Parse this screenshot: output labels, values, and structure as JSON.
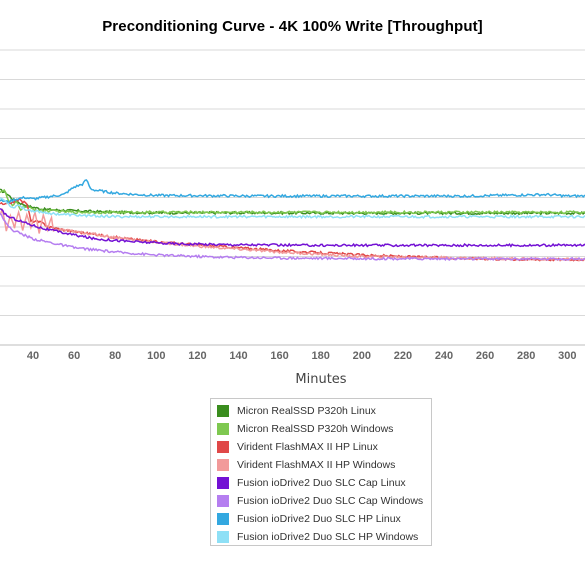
{
  "chart_data": {
    "type": "line",
    "title": "Preconditioning Curve - 4K 100% Write [Throughput]",
    "xlabel": "Minutes",
    "ylabel": "",
    "xlim": [
      24,
      309
    ],
    "ylim": [
      0,
      10
    ],
    "x_ticks": [
      "40",
      "60",
      "80",
      "100",
      "120",
      "140",
      "160",
      "180",
      "200",
      "220",
      "240",
      "260",
      "280",
      "300"
    ],
    "grid": true,
    "legend_position": "bottom-center",
    "series": [
      {
        "name": "Micron RealSSD P320h Linux",
        "color": "#3a8d1e",
        "x": [
          24,
          27,
          30,
          34,
          38,
          45,
          60,
          80,
          100,
          150,
          200,
          250,
          309
        ],
        "y": [
          5.25,
          5.15,
          4.95,
          4.8,
          4.7,
          4.6,
          4.55,
          4.5,
          4.48,
          4.48,
          4.47,
          4.47,
          4.47
        ]
      },
      {
        "name": "Micron RealSSD P320h Windows",
        "color": "#7ec850",
        "x": [
          24,
          26,
          28,
          30,
          32,
          34,
          36,
          40,
          45,
          50,
          60,
          80,
          100,
          150,
          200,
          250,
          309
        ],
        "y": [
          5.2,
          5.25,
          4.9,
          4.7,
          4.85,
          4.6,
          4.7,
          4.6,
          4.55,
          4.55,
          4.5,
          4.5,
          4.5,
          4.5,
          4.5,
          4.5,
          4.5
        ]
      },
      {
        "name": "Virident FlashMAX II HP Linux",
        "color": "#e04848",
        "x": [
          24,
          26,
          28,
          30,
          32,
          34,
          35,
          37,
          39,
          41,
          44,
          48,
          55,
          65,
          80,
          100,
          130,
          160,
          200,
          240,
          280,
          309
        ],
        "y": [
          4.8,
          4.75,
          4.8,
          4.85,
          4.9,
          4.95,
          4.85,
          4.8,
          4.2,
          4.2,
          4.15,
          4.0,
          3.9,
          3.8,
          3.65,
          3.5,
          3.35,
          3.2,
          3.05,
          2.95,
          2.9,
          2.9
        ]
      },
      {
        "name": "Virident FlashMAX II HP Windows",
        "color": "#f29a9a",
        "x": [
          24,
          25,
          27,
          29,
          31,
          33,
          35,
          37,
          39,
          41,
          43,
          45,
          47,
          49,
          50,
          55,
          70,
          90,
          120,
          160,
          200,
          250,
          309
        ],
        "y": [
          4.4,
          4.6,
          3.9,
          4.4,
          4.0,
          4.5,
          3.9,
          4.4,
          4.0,
          4.5,
          3.8,
          4.4,
          3.9,
          4.3,
          3.9,
          3.9,
          3.75,
          3.55,
          3.35,
          3.15,
          3.0,
          2.95,
          2.9
        ]
      },
      {
        "name": "Fusion ioDrive2 Duo SLC Cap Linux",
        "color": "#7311d4",
        "x": [
          24,
          28,
          32,
          38,
          45,
          55,
          70,
          90,
          110,
          140,
          170,
          200,
          250,
          309
        ],
        "y": [
          4.6,
          4.35,
          4.25,
          4.1,
          3.95,
          3.8,
          3.6,
          3.5,
          3.43,
          3.4,
          3.38,
          3.38,
          3.38,
          3.38
        ]
      },
      {
        "name": "Fusion ioDrive2 Duo SLC Cap Windows",
        "color": "#b57ef0",
        "x": [
          24,
          27,
          30,
          35,
          40,
          50,
          60,
          80,
          100,
          130,
          160,
          200,
          250,
          309
        ],
        "y": [
          4.5,
          4.1,
          3.9,
          3.75,
          3.6,
          3.45,
          3.3,
          3.15,
          3.05,
          2.98,
          2.95,
          2.93,
          2.92,
          2.92
        ]
      },
      {
        "name": "Fusion ioDrive2 Duo SLC HP Linux",
        "color": "#33a8e0",
        "x": [
          24,
          28,
          32,
          36,
          40,
          45,
          50,
          55,
          60,
          64,
          66,
          68,
          70,
          75,
          80,
          90,
          100,
          150,
          200,
          250,
          290,
          300,
          309
        ],
        "y": [
          4.9,
          4.85,
          4.95,
          5.0,
          4.95,
          5.0,
          5.05,
          5.1,
          5.35,
          5.45,
          5.6,
          5.3,
          5.25,
          5.2,
          5.15,
          5.1,
          5.07,
          5.05,
          5.05,
          5.05,
          5.1,
          5.05,
          5.05
        ]
      },
      {
        "name": "Fusion ioDrive2 Duo SLC HP Windows",
        "color": "#8ee0f6",
        "x": [
          24,
          26,
          28,
          30,
          33,
          36,
          40,
          45,
          50,
          60,
          80,
          100,
          150,
          200,
          250,
          309
        ],
        "y": [
          5.0,
          4.9,
          4.8,
          4.65,
          4.75,
          4.6,
          4.55,
          4.5,
          4.45,
          4.4,
          4.35,
          4.35,
          4.35,
          4.35,
          4.35,
          4.35
        ]
      }
    ]
  }
}
